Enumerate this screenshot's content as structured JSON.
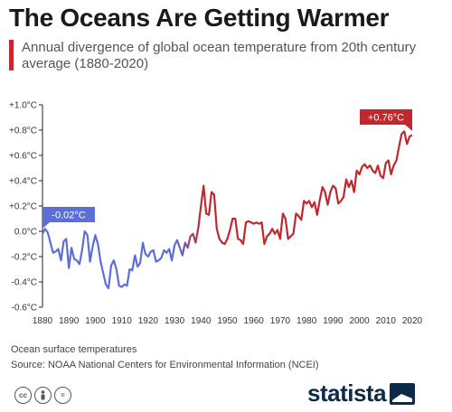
{
  "header": {
    "title": "The Oceans Are Getting Warmer",
    "subtitle": "Annual divergence of global ocean temperature from 20th century average (1880-2020)"
  },
  "footer": {
    "note": "Ocean surface temperatures",
    "source": "Source: NOAA National Centers for Environmental Information (NCEI)",
    "license_icons": [
      "cc-icon",
      "person-icon",
      "equals-icon"
    ],
    "license_glyphs": [
      "cc",
      "",
      "="
    ],
    "brand": "statista"
  },
  "colors": {
    "cool": "#5b6fd6",
    "warm": "#c0282d",
    "accent": "#c9282d",
    "brand": "#0d2a4a"
  },
  "chart_data": {
    "type": "line",
    "title": "The Oceans Are Getting Warmer",
    "xlabel": "",
    "ylabel": "",
    "xlim": [
      1880,
      2020
    ],
    "ylim": [
      -0.6,
      1.0
    ],
    "grid": false,
    "yticks": [
      1.0,
      0.8,
      0.6,
      0.4,
      0.2,
      0.0,
      -0.2,
      -0.4,
      -0.6
    ],
    "ytick_labels": [
      "+1.0°C",
      "+0.8°C",
      "+0.6°C",
      "+0.4°C",
      "+0.2°C",
      "0.0°C",
      "-0.2°C",
      "-0.4°C",
      "-0.6°C"
    ],
    "xticks": [
      1880,
      1890,
      1900,
      1910,
      1920,
      1930,
      1940,
      1950,
      1960,
      1970,
      1980,
      1990,
      2000,
      2010,
      2020
    ],
    "xtick_labels": [
      "1880",
      "1890",
      "1900",
      "1910",
      "1920",
      "1930",
      "1940",
      "1950",
      "1960",
      "1970",
      "1980",
      "1990",
      "2000",
      "2010",
      "2020"
    ],
    "annotations": [
      {
        "text": "-0.02°C",
        "x": 1880,
        "y": -0.02
      },
      {
        "text": "+0.76°C",
        "x": 2020,
        "y": 0.76
      }
    ],
    "series": [
      {
        "x": [
          1880,
          1881,
          1882,
          1883,
          1884,
          1885,
          1886,
          1887,
          1888,
          1889,
          1890,
          1891,
          1892,
          1893,
          1894,
          1895,
          1896,
          1897,
          1898,
          1899,
          1900,
          1901,
          1902,
          1903,
          1904,
          1905,
          1906,
          1907,
          1908,
          1909,
          1910,
          1911,
          1912,
          1913,
          1914,
          1915,
          1916,
          1917,
          1918,
          1919,
          1920,
          1921,
          1922,
          1923,
          1924,
          1925,
          1926,
          1927,
          1928,
          1929,
          1930,
          1931,
          1932,
          1933,
          1934,
          1935,
          1936,
          1937,
          1938,
          1939,
          1940,
          1941,
          1942,
          1943,
          1944,
          1945,
          1946,
          1947,
          1948,
          1949,
          1950,
          1951,
          1952,
          1953,
          1954,
          1955,
          1956,
          1957,
          1958,
          1959,
          1960,
          1961,
          1962,
          1963,
          1964,
          1965,
          1966,
          1967,
          1968,
          1969,
          1970,
          1971,
          1972,
          1973,
          1974,
          1975,
          1976,
          1977,
          1978,
          1979,
          1980,
          1981,
          1982,
          1983,
          1984,
          1985,
          1986,
          1987,
          1988,
          1989,
          1990,
          1991,
          1992,
          1993,
          1994,
          1995,
          1996,
          1997,
          1998,
          1999,
          2000,
          2001,
          2002,
          2003,
          2004,
          2005,
          2006,
          2007,
          2008,
          2009,
          2010,
          2011,
          2012,
          2013,
          2014,
          2015,
          2016,
          2017,
          2018,
          2019,
          2020
        ],
        "y": [
          -0.02,
          0.02,
          -0.01,
          -0.09,
          -0.17,
          -0.16,
          -0.14,
          -0.23,
          -0.08,
          -0.06,
          -0.29,
          -0.13,
          -0.22,
          -0.23,
          -0.26,
          -0.15,
          0.0,
          -0.03,
          -0.24,
          -0.12,
          -0.03,
          -0.1,
          -0.24,
          -0.33,
          -0.42,
          -0.45,
          -0.27,
          -0.23,
          -0.3,
          -0.43,
          -0.44,
          -0.42,
          -0.43,
          -0.3,
          -0.31,
          -0.19,
          -0.28,
          -0.25,
          -0.09,
          -0.18,
          -0.2,
          -0.16,
          -0.15,
          -0.24,
          -0.23,
          -0.21,
          -0.15,
          -0.17,
          -0.14,
          -0.23,
          -0.11,
          -0.07,
          -0.13,
          -0.19,
          -0.09,
          -0.13,
          -0.04,
          -0.02,
          -0.09,
          0.03,
          0.2,
          0.36,
          0.14,
          0.13,
          0.31,
          0.29,
          0.02,
          -0.06,
          -0.09,
          -0.1,
          -0.06,
          0.01,
          0.1,
          0.1,
          -0.06,
          -0.07,
          -0.1,
          0.07,
          0.08,
          0.07,
          0.06,
          0.07,
          0.06,
          0.07,
          -0.1,
          -0.04,
          -0.02,
          0.02,
          -0.02,
          0.01,
          -0.06,
          0.14,
          0.1,
          -0.06,
          -0.04,
          -0.02,
          0.14,
          0.12,
          0.09,
          0.24,
          0.22,
          0.24,
          0.19,
          0.23,
          0.13,
          0.25,
          0.35,
          0.31,
          0.21,
          0.31,
          0.36,
          0.34,
          0.22,
          0.24,
          0.27,
          0.41,
          0.35,
          0.4,
          0.31,
          0.48,
          0.45,
          0.51,
          0.53,
          0.5,
          0.52,
          0.48,
          0.46,
          0.52,
          0.44,
          0.42,
          0.54,
          0.56,
          0.45,
          0.52,
          0.56,
          0.67,
          0.77,
          0.79,
          0.69,
          0.75,
          0.76
        ]
      }
    ]
  }
}
